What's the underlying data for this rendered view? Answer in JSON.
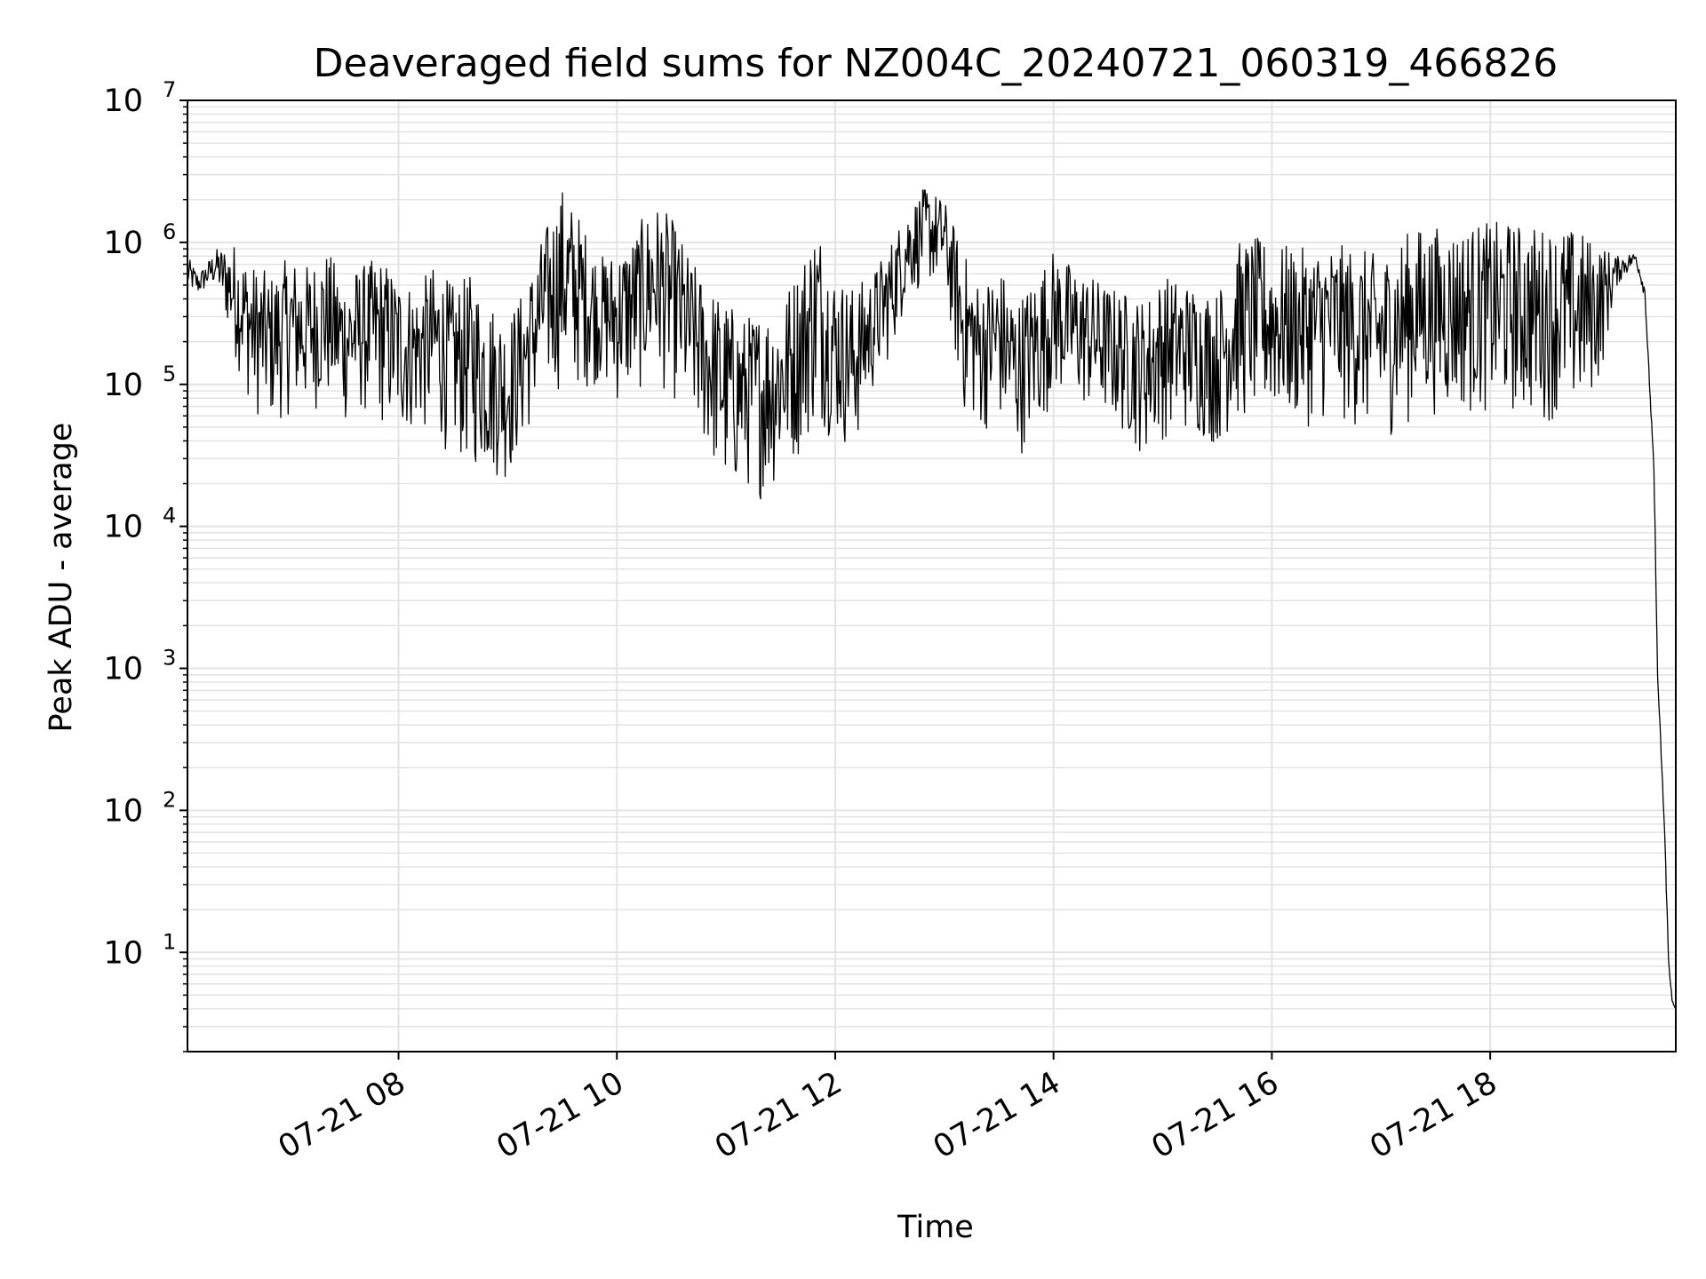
{
  "chart_data": {
    "type": "line",
    "title": "Deaveraged field sums for NZ004C_20240721_060319_466826",
    "xlabel": "Time",
    "ylabel": "Peak ADU - average",
    "yscale": "log",
    "grid": true,
    "x_range": [
      "2024-07-21 06:04",
      "2024-07-21 19:42"
    ],
    "ylim": [
      2,
      10000000
    ],
    "x_ticks": [
      "07-21 08",
      "07-21 10",
      "07-21 12",
      "07-21 14",
      "07-21 16",
      "07-21 18"
    ],
    "y_ticks": [
      {
        "base": "10",
        "exp": "1"
      },
      {
        "base": "10",
        "exp": "2"
      },
      {
        "base": "10",
        "exp": "3"
      },
      {
        "base": "10",
        "exp": "4"
      },
      {
        "base": "10",
        "exp": "5"
      },
      {
        "base": "10",
        "exp": "6"
      },
      {
        "base": "10",
        "exp": "7"
      }
    ],
    "series_color": "#000000",
    "grid_color": "#e3e3e3",
    "series": [
      {
        "time": [
          "06:04",
          "06:10",
          "06:20",
          "06:30",
          "06:40",
          "06:50",
          "07:00",
          "07:10",
          "07:20",
          "07:30",
          "07:40",
          "07:50",
          "08:00",
          "08:10",
          "08:20",
          "08:30",
          "08:40",
          "08:50",
          "09:00",
          "09:10",
          "09:20",
          "09:30",
          "09:40",
          "09:50",
          "10:00",
          "10:10",
          "10:20",
          "10:30",
          "10:40",
          "10:50",
          "11:00",
          "11:10",
          "11:20",
          "11:30",
          "11:40",
          "11:50",
          "12:00",
          "12:10",
          "12:20",
          "12:30",
          "12:40",
          "12:50",
          "13:00",
          "13:10",
          "13:20",
          "13:30",
          "13:40",
          "13:50",
          "14:00",
          "14:10",
          "14:20",
          "14:30",
          "14:40",
          "14:50",
          "15:00",
          "15:10",
          "15:20",
          "15:30",
          "15:40",
          "15:50",
          "16:00",
          "16:10",
          "16:20",
          "16:30",
          "16:40",
          "16:50",
          "17:00",
          "17:10",
          "17:20",
          "17:30",
          "17:40",
          "17:50",
          "18:00",
          "18:10",
          "18:20",
          "18:30",
          "18:40",
          "18:50",
          "19:00",
          "19:10",
          "19:20",
          "19:25",
          "19:30",
          "19:32",
          "19:34",
          "19:36",
          "19:38",
          "19:40",
          "19:42"
        ],
        "high": [
          800000,
          600000,
          900000,
          1000000,
          700000,
          600000,
          800000,
          700000,
          900000,
          600000,
          700000,
          800000,
          600000,
          500000,
          700000,
          500000,
          600000,
          400000,
          300000,
          500000,
          1200000,
          2500000,
          1500000,
          800000,
          900000,
          1200000,
          2000000,
          1500000,
          800000,
          500000,
          400000,
          300000,
          350000,
          400000,
          700000,
          1500000,
          600000,
          500000,
          600000,
          1000000,
          1800000,
          2500000,
          2000000,
          900000,
          500000,
          700000,
          400000,
          600000,
          900000,
          700000,
          600000,
          500000,
          450000,
          400000,
          600000,
          550000,
          500000,
          450000,
          1000000,
          1100000,
          1000000,
          950000,
          900000,
          1000000,
          950000,
          900000,
          800000,
          1100000,
          1300000,
          1300000,
          1300000,
          1350000,
          1400000,
          1400000,
          1350000,
          1300000,
          1300000,
          1200000,
          1000000,
          800000,
          850000,
          500000,
          30000,
          1000,
          300,
          80,
          10,
          5,
          4
        ],
        "low": [
          450000,
          420000,
          500000,
          150000,
          60000,
          50000,
          60000,
          60000,
          70000,
          50000,
          60000,
          50000,
          40000,
          45000,
          40000,
          30000,
          25000,
          22000,
          20000,
          40000,
          80000,
          90000,
          90000,
          100000,
          70000,
          80000,
          100000,
          80000,
          50000,
          30000,
          15000,
          18000,
          15000,
          20000,
          30000,
          50000,
          40000,
          30000,
          80000,
          150000,
          400000,
          500000,
          500000,
          60000,
          45000,
          50000,
          30000,
          40000,
          80000,
          70000,
          60000,
          55000,
          40000,
          30000,
          40000,
          45000,
          40000,
          35000,
          50000,
          55000,
          55000,
          50000,
          50000,
          55000,
          50000,
          45000,
          40000,
          45000,
          60000,
          60000,
          60000,
          60000,
          60000,
          60000,
          55000,
          55000,
          55000,
          60000,
          100000,
          500000,
          700000,
          400000,
          20000,
          800,
          200,
          50,
          8,
          4,
          4
        ]
      }
    ]
  }
}
